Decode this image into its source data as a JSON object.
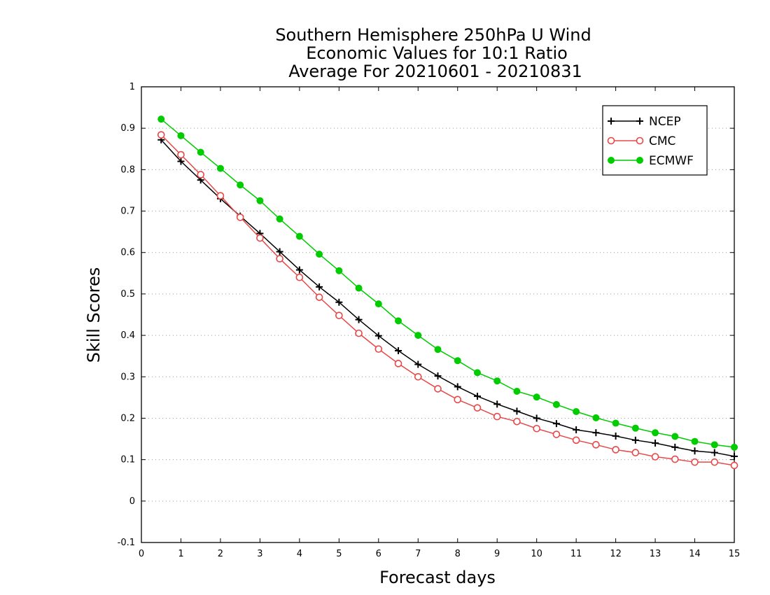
{
  "chart_data": {
    "type": "line",
    "title": [
      "Southern Hemisphere 250hPa U Wind",
      "Economic Values for 10:1 Ratio",
      "Average For 20210601 - 20210831"
    ],
    "xlabel": "Forecast days",
    "ylabel": "Skill Scores",
    "xlim": [
      0,
      15
    ],
    "ylim": [
      -0.1,
      1
    ],
    "xticks": [
      0,
      1,
      2,
      3,
      4,
      5,
      6,
      7,
      8,
      9,
      10,
      11,
      12,
      13,
      14,
      15
    ],
    "xtick_labels": [
      "0",
      "1",
      "2",
      "3",
      "4",
      "5",
      "6",
      "7",
      "8",
      "9",
      "10",
      "11",
      "12",
      "13",
      "14",
      "15"
    ],
    "yticks": [
      -0.1,
      0,
      0.1,
      0.2,
      0.3,
      0.4,
      0.5,
      0.6,
      0.7,
      0.8,
      0.9,
      1
    ],
    "ytick_labels": [
      "-0.1",
      "0",
      "0.1",
      "0.2",
      "0.3",
      "0.4",
      "0.5",
      "0.6",
      "0.7",
      "0.8",
      "0.9",
      "1"
    ],
    "grid": true,
    "legend_position": "top-right",
    "x": [
      0.5,
      1,
      1.5,
      2,
      2.5,
      3,
      3.5,
      4,
      4.5,
      5,
      5.5,
      6,
      6.5,
      7,
      7.5,
      8,
      8.5,
      9,
      9.5,
      10,
      10.5,
      11,
      11.5,
      12,
      12.5,
      13,
      13.5,
      14,
      14.5,
      15
    ],
    "series": [
      {
        "name": "NCEP",
        "color": "#000000",
        "marker": "plus",
        "values": [
          0.872,
          0.82,
          0.775,
          0.73,
          0.688,
          0.646,
          0.602,
          0.558,
          0.517,
          0.48,
          0.438,
          0.399,
          0.363,
          0.33,
          0.302,
          0.276,
          0.253,
          0.234,
          0.217,
          0.2,
          0.187,
          0.172,
          0.165,
          0.157,
          0.147,
          0.14,
          0.13,
          0.121,
          0.117,
          0.108
        ]
      },
      {
        "name": "CMC",
        "color": "#e84848",
        "marker": "open-circle",
        "values": [
          0.884,
          0.836,
          0.788,
          0.737,
          0.685,
          0.635,
          0.585,
          0.54,
          0.492,
          0.448,
          0.405,
          0.367,
          0.332,
          0.3,
          0.271,
          0.245,
          0.225,
          0.204,
          0.192,
          0.175,
          0.161,
          0.147,
          0.136,
          0.124,
          0.117,
          0.107,
          0.101,
          0.094,
          0.094,
          0.086
        ]
      },
      {
        "name": "ECMWF",
        "color": "#00cc00",
        "marker": "filled-circle",
        "values": [
          0.922,
          0.882,
          0.842,
          0.803,
          0.763,
          0.725,
          0.681,
          0.639,
          0.596,
          0.556,
          0.514,
          0.476,
          0.435,
          0.4,
          0.366,
          0.339,
          0.31,
          0.29,
          0.265,
          0.251,
          0.233,
          0.216,
          0.201,
          0.188,
          0.176,
          0.165,
          0.156,
          0.144,
          0.136,
          0.13
        ]
      }
    ]
  }
}
